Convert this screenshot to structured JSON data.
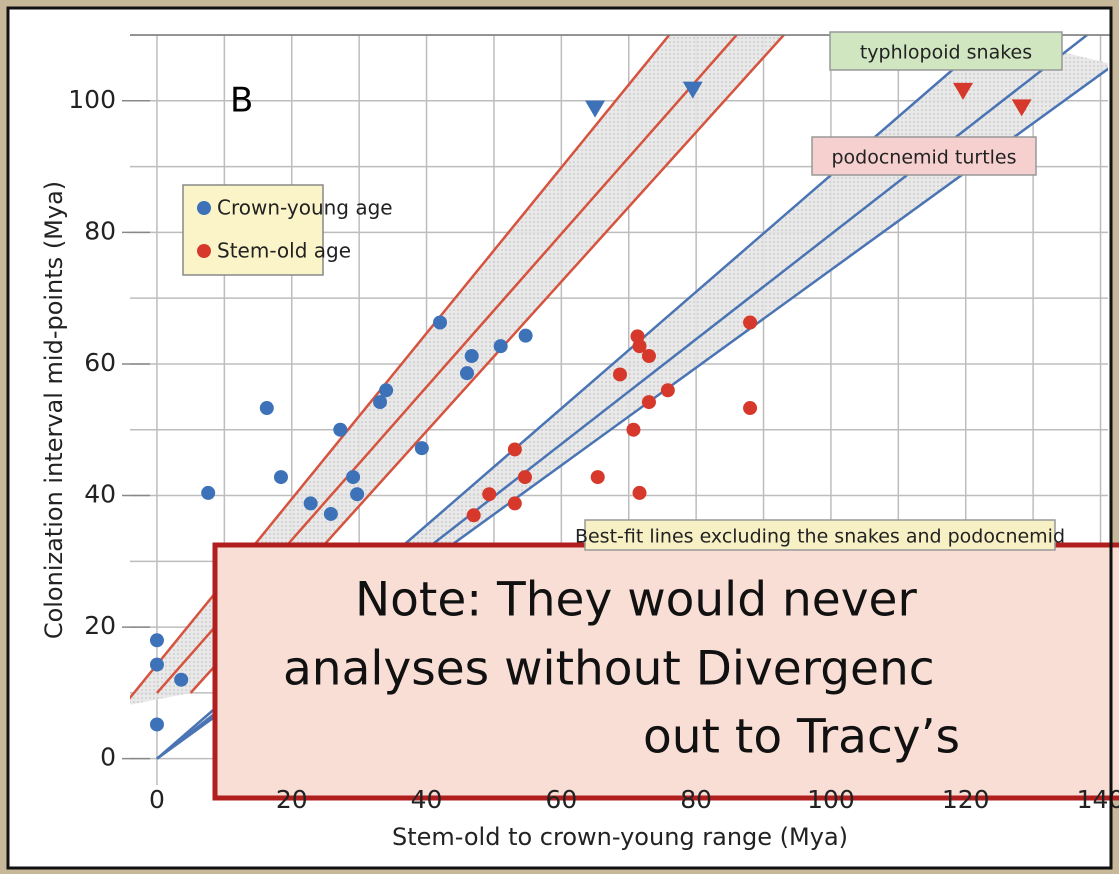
{
  "chart_data": {
    "type": "scatter",
    "panel_label": "B",
    "xlabel": "Stem-old to crown-young range (Mya)",
    "ylabel": "Colonization interval mid-points (Mya)",
    "xlim": [
      -4,
      142
    ],
    "ylim": [
      -4,
      110
    ],
    "xticks": [
      0,
      20,
      40,
      60,
      80,
      100,
      120,
      140
    ],
    "yticks": [
      0,
      20,
      40,
      60,
      80,
      100
    ],
    "minor_xticks": [
      10,
      30,
      50,
      70,
      90,
      110,
      130
    ],
    "minor_yticks": [
      10,
      30,
      50,
      70,
      90,
      110
    ],
    "grid": true,
    "legend_position": "upper left",
    "series": [
      {
        "name": "Crown-young age",
        "color": "#3d72b8",
        "x": [
          0,
          0,
          3.6,
          0,
          7.6,
          16.3,
          18.4,
          22.8,
          25.8,
          27.2,
          29.1,
          29.7,
          33.1,
          34,
          39.3,
          42,
          46,
          46.7,
          51,
          54.7
        ],
        "values": [
          18,
          14.3,
          12,
          5.2,
          40.4,
          53.3,
          42.8,
          38.8,
          37.2,
          50,
          42.8,
          40.2,
          54.2,
          56,
          47.2,
          66.3,
          58.6,
          61.2,
          62.7,
          64.3
        ]
      },
      {
        "name": "Stem-old age",
        "color": "#d6392b",
        "x": [
          47,
          49.3,
          53.1,
          53.1,
          54.6,
          65.4,
          68.7,
          70.7,
          71.3,
          71.6,
          71.6,
          73,
          73,
          75.8,
          88,
          88
        ],
        "values": [
          37,
          40.2,
          47,
          38.8,
          42.8,
          42.8,
          58.4,
          50,
          64.2,
          62.7,
          40.4,
          61.2,
          54.2,
          56,
          66.3,
          53.3
        ]
      }
    ],
    "triangle_points": [
      {
        "color": "#3d72b8",
        "x": [
          65,
          79.5
        ],
        "values": [
          98.8,
          101.7
        ]
      },
      {
        "color": "#d6392b",
        "x": [
          119.6,
          128.3
        ],
        "values": [
          101.5,
          99
        ]
      }
    ],
    "fit_lines": [
      {
        "color": "#d6533f",
        "x": [
          -5,
          76
        ],
        "values": [
          8,
          110
        ]
      },
      {
        "color": "#d6533f",
        "x": [
          0,
          86
        ],
        "values": [
          10,
          110
        ]
      },
      {
        "color": "#d6533f",
        "x": [
          5,
          93
        ],
        "values": [
          10,
          110
        ]
      },
      {
        "color": "#4a74b4",
        "x": [
          0,
          124
        ],
        "values": [
          0,
          110
        ]
      },
      {
        "color": "#4a74b4",
        "x": [
          0,
          138
        ],
        "values": [
          0,
          110
        ]
      },
      {
        "color": "#4a74b4",
        "x": [
          0,
          142
        ],
        "values": [
          0,
          105.5
        ]
      }
    ],
    "annotations": [
      {
        "text": "typhlopoid snakes",
        "fill": "#cfe6c0"
      },
      {
        "text": "podocnemid turtles",
        "fill": "#f6cfcf"
      },
      {
        "text": "Best-fit lines excluding the snakes and podocnemid",
        "fill": "#f7f0c4"
      }
    ]
  },
  "note": {
    "lines": [
      "Note:  They would never",
      "analyses without Divergenc",
      "out to Tracy’s"
    ]
  }
}
